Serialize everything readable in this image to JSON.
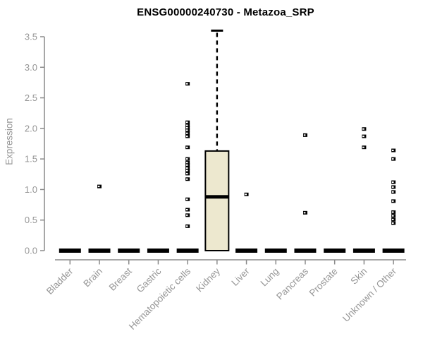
{
  "chart_data": {
    "type": "boxplot",
    "title": "ENSG00000240730 - Metazoa_SRP",
    "ylabel": "Expression",
    "xlabel": "",
    "ylim": [
      0,
      3.5
    ],
    "ytick_labels": [
      "0.0",
      "0.5",
      "1.0",
      "1.5",
      "2.0",
      "2.5",
      "3.0",
      "3.5"
    ],
    "categories": [
      "Bladder",
      "Brain",
      "Breast",
      "Gastric",
      "Hematopoietic cells",
      "Kidney",
      "Liver",
      "Lung",
      "Pancreas",
      "Prostate",
      "Skin",
      "Unknown / Other"
    ],
    "grid": false,
    "legend_position": "none",
    "groups": [
      {
        "category": "Bladder",
        "median": 0,
        "outliers": []
      },
      {
        "category": "Brain",
        "median": 0,
        "outliers": [
          1.05
        ]
      },
      {
        "category": "Breast",
        "median": 0,
        "outliers": []
      },
      {
        "category": "Gastric",
        "median": 0,
        "outliers": []
      },
      {
        "category": "Hematopoietic cells",
        "median": 0,
        "outliers": [
          2.73,
          2.1,
          2.05,
          2.01,
          1.97,
          1.92,
          1.87,
          1.69,
          1.5,
          1.44,
          1.4,
          1.35,
          1.31,
          1.26,
          1.17,
          0.84,
          0.67,
          0.58,
          0.4
        ]
      },
      {
        "category": "Kidney",
        "box": {
          "q1": 0.0,
          "median": 0.88,
          "q3": 1.63,
          "whisker_low": 0.0,
          "whisker_high": 3.6
        },
        "outliers": []
      },
      {
        "category": "Liver",
        "median": 0,
        "outliers": [
          0.92
        ]
      },
      {
        "category": "Lung",
        "median": 0,
        "outliers": []
      },
      {
        "category": "Pancreas",
        "median": 0,
        "outliers": [
          1.89,
          0.62
        ]
      },
      {
        "category": "Prostate",
        "median": 0,
        "outliers": []
      },
      {
        "category": "Skin",
        "median": 0,
        "outliers": [
          1.99,
          1.87,
          1.69
        ]
      },
      {
        "category": "Unknown / Other",
        "median": 0,
        "outliers": [
          1.64,
          1.5,
          1.12,
          1.04,
          0.96,
          0.81,
          0.63,
          0.57,
          0.51,
          0.45
        ]
      }
    ]
  },
  "colors": {
    "background": "#FFFFFF",
    "box_fill": "#EDE8CF",
    "box_border": "#000000",
    "median": "#000000",
    "point": "#000000",
    "axis_line": "#8A8A8A",
    "tick_label": "#969696",
    "title": "#000000"
  }
}
